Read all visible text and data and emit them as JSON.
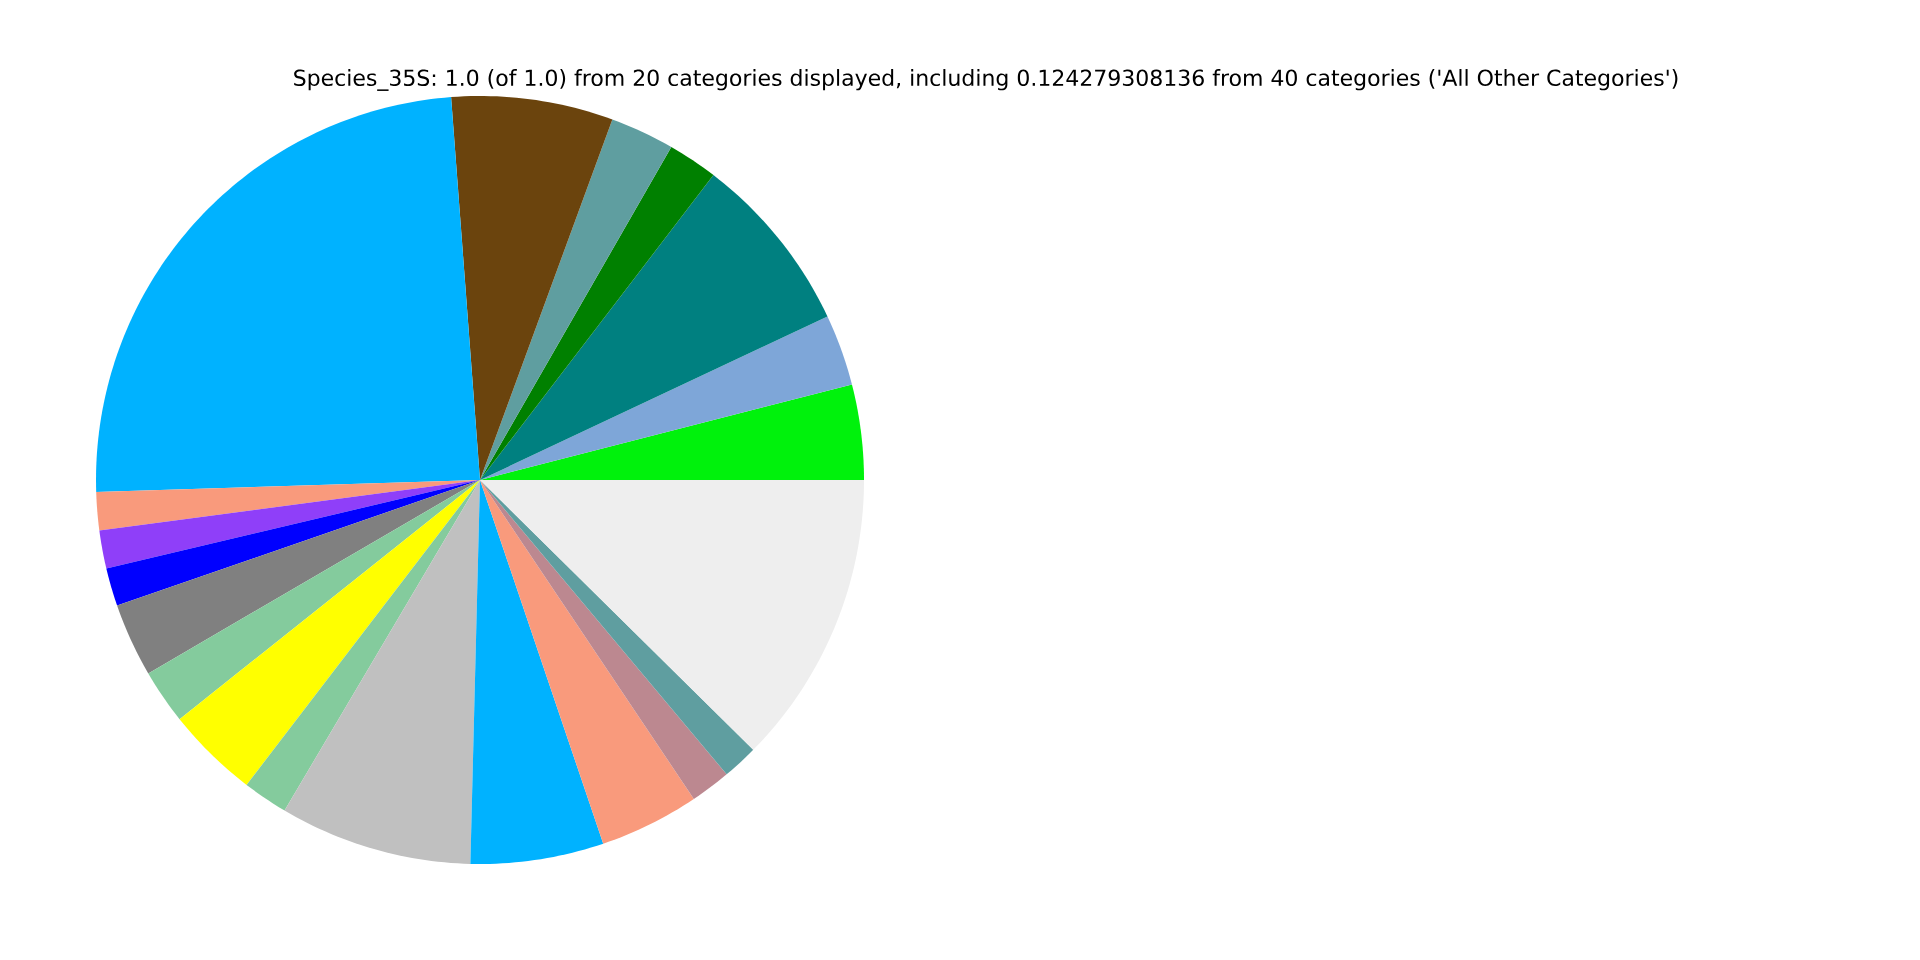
{
  "chart_data": {
    "type": "pie",
    "title": "Species_35S: 1.0 (of 1.0) from 20 categories displayed, including 0.124279308136 from 40 categories ('All Other Categories')",
    "categories": [
      null,
      null,
      null,
      null,
      null,
      null,
      null,
      null,
      null,
      null,
      null,
      null,
      null,
      null,
      null,
      null,
      null,
      null,
      null,
      null
    ],
    "values": [
      4.0,
      3.0,
      7.6,
      2.1,
      2.7,
      6.8,
      24.3,
      1.6,
      1.6,
      1.6,
      3.1,
      2.3,
      3.9,
      1.9,
      8.1,
      5.6,
      4.2,
      1.7,
      1.5,
      12.4
    ],
    "colors": [
      "#00f20c",
      "#7ea6d8",
      "#008080",
      "#008000",
      "#5f9ea0",
      "#6b440d",
      "#00b2ff",
      "#f99a7c",
      "#8f3ff9",
      "#0000ff",
      "#808080",
      "#84cb9d",
      "#ffff00",
      "#84cb9d",
      "#c0c0c0",
      "#00b2ff",
      "#f99a7c",
      "#bc8890",
      "#5f9ea0",
      "#eeeeee"
    ]
  }
}
